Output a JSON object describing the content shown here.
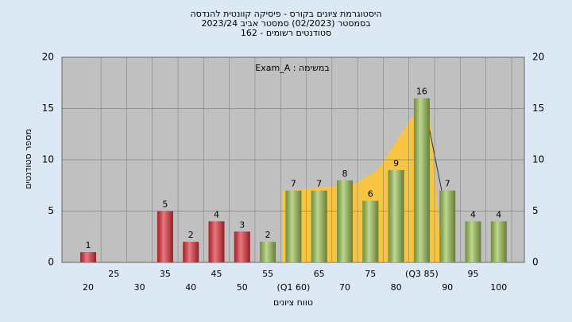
{
  "chart_data": {
    "type": "bar",
    "title_lines": [
      "היסטוגרמת ציונים בקורס - פיסיקה קוונטית להנדסה",
      "בסמסטר  (02/2023)  סמסטר אביב 2023/24",
      "סטודנטים רשומים - 162"
    ],
    "annotation": "במשימה : Exam_A",
    "xlabel": "טווח ציונים",
    "ylabel": "מספר סטודנטים",
    "categories": [
      "20",
      "25",
      "30",
      "35",
      "40",
      "45",
      "50",
      "55",
      "(Q1 60)",
      "65",
      "70",
      "75",
      "80",
      "(Q3 85)",
      "90",
      "95",
      "100"
    ],
    "values": [
      1,
      0,
      0,
      5,
      2,
      4,
      3,
      2,
      7,
      7,
      8,
      6,
      9,
      16,
      7,
      4,
      4
    ],
    "colors": [
      "#e0303a",
      "#e0303a",
      "#e0303a",
      "#e0303a",
      "#e0303a",
      "#e0303a",
      "#e0303a",
      "#9cc255",
      "#9cc255",
      "#9cc255",
      "#9cc255",
      "#9cc255",
      "#9cc255",
      "#9cc255",
      "#9cc255",
      "#9cc255",
      "#9cc255"
    ],
    "ylim": [
      0,
      20
    ],
    "yticks": [
      0,
      5,
      10,
      15,
      20
    ],
    "grid": true
  }
}
